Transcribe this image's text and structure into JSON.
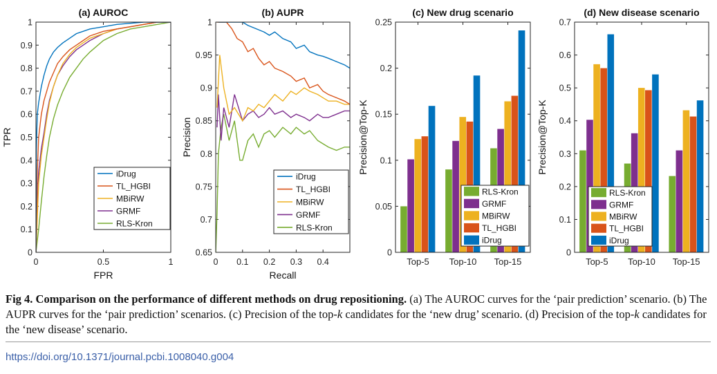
{
  "colors": {
    "iDrug": "#0072BD",
    "TL_HGBI": "#D95319",
    "MBiRW": "#EDB120",
    "GRMF": "#7E2F8E",
    "RLS-Kron": "#77AC30"
  },
  "chart_data": [
    {
      "type": "line",
      "title": "(a) AUROC",
      "xlabel": "FPR",
      "ylabel": "TPR",
      "xlim": [
        0,
        1
      ],
      "ylim": [
        0,
        1
      ],
      "xticks": [
        "0",
        "0.5",
        "1"
      ],
      "yticks": [
        "0",
        "0.1",
        "0.2",
        "0.3",
        "0.4",
        "0.5",
        "0.6",
        "0.7",
        "0.8",
        "0.9",
        "1"
      ],
      "legend_position": "bottom-right",
      "series": [
        {
          "name": "iDrug",
          "x": [
            0,
            0.003,
            0.01,
            0.02,
            0.04,
            0.06,
            0.08,
            0.1,
            0.13,
            0.16,
            0.2,
            0.25,
            0.3,
            0.35,
            0.4,
            0.5,
            0.6,
            0.7,
            0.8,
            0.9,
            1
          ],
          "y": [
            0,
            0.45,
            0.6,
            0.65,
            0.72,
            0.77,
            0.81,
            0.84,
            0.87,
            0.89,
            0.91,
            0.93,
            0.95,
            0.96,
            0.97,
            0.98,
            0.99,
            0.995,
            1,
            1,
            1
          ]
        },
        {
          "name": "TL_HGBI",
          "x": [
            0,
            0.01,
            0.02,
            0.04,
            0.06,
            0.08,
            0.1,
            0.13,
            0.16,
            0.2,
            0.25,
            0.3,
            0.35,
            0.4,
            0.5,
            0.6,
            0.7,
            0.8,
            0.9,
            1
          ],
          "y": [
            0,
            0.35,
            0.5,
            0.6,
            0.66,
            0.7,
            0.74,
            0.78,
            0.82,
            0.85,
            0.88,
            0.9,
            0.92,
            0.94,
            0.96,
            0.97,
            0.98,
            0.99,
            1,
            1
          ]
        },
        {
          "name": "MBiRW",
          "x": [
            0,
            0.01,
            0.02,
            0.04,
            0.06,
            0.08,
            0.1,
            0.13,
            0.16,
            0.2,
            0.25,
            0.3,
            0.35,
            0.4,
            0.5,
            0.6,
            0.7,
            0.8,
            0.9,
            1
          ],
          "y": [
            0,
            0.15,
            0.3,
            0.42,
            0.5,
            0.58,
            0.65,
            0.72,
            0.77,
            0.82,
            0.86,
            0.89,
            0.91,
            0.93,
            0.95,
            0.97,
            0.98,
            0.99,
            1,
            1
          ]
        },
        {
          "name": "GRMF",
          "x": [
            0,
            0.01,
            0.02,
            0.04,
            0.06,
            0.08,
            0.1,
            0.13,
            0.16,
            0.2,
            0.25,
            0.3,
            0.35,
            0.4,
            0.5,
            0.6,
            0.7,
            0.8,
            0.9,
            1
          ],
          "y": [
            0,
            0.2,
            0.35,
            0.45,
            0.52,
            0.6,
            0.66,
            0.72,
            0.77,
            0.81,
            0.85,
            0.88,
            0.9,
            0.92,
            0.95,
            0.97,
            0.98,
            0.99,
            1,
            1
          ]
        },
        {
          "name": "RLS-Kron",
          "x": [
            0,
            0.02,
            0.04,
            0.06,
            0.08,
            0.1,
            0.13,
            0.16,
            0.2,
            0.25,
            0.3,
            0.35,
            0.4,
            0.5,
            0.6,
            0.7,
            0.8,
            0.9,
            1
          ],
          "y": [
            0,
            0.1,
            0.22,
            0.33,
            0.42,
            0.5,
            0.58,
            0.64,
            0.7,
            0.76,
            0.8,
            0.84,
            0.87,
            0.92,
            0.95,
            0.97,
            0.98,
            0.99,
            1
          ]
        }
      ]
    },
    {
      "type": "line",
      "title": "(b) AUPR",
      "xlabel": "Recall",
      "ylabel": "Precision",
      "xlim": [
        0,
        0.5
      ],
      "ylim": [
        0.65,
        1
      ],
      "xticks": [
        "0",
        "0.1",
        "0.2",
        "0.3",
        "0.4"
      ],
      "yticks": [
        "0.65",
        "0.7",
        "0.75",
        "0.8",
        "0.85",
        "0.9",
        "0.95",
        "1"
      ],
      "legend_position": "bottom-right",
      "series": [
        {
          "name": "iDrug",
          "x": [
            0.01,
            0.02,
            0.05,
            0.08,
            0.1,
            0.12,
            0.15,
            0.18,
            0.2,
            0.22,
            0.25,
            0.28,
            0.3,
            0.33,
            0.35,
            0.38,
            0.4,
            0.42,
            0.45,
            0.48,
            0.5
          ],
          "y": [
            1,
            1,
            1,
            1,
            1,
            0.995,
            0.99,
            0.985,
            0.98,
            0.985,
            0.975,
            0.97,
            0.96,
            0.965,
            0.955,
            0.95,
            0.948,
            0.945,
            0.94,
            0.935,
            0.93
          ]
        },
        {
          "name": "TL_HGBI",
          "x": [
            0.005,
            0.02,
            0.04,
            0.06,
            0.08,
            0.1,
            0.12,
            0.14,
            0.16,
            0.18,
            0.2,
            0.22,
            0.25,
            0.28,
            0.3,
            0.33,
            0.35,
            0.38,
            0.4,
            0.42,
            0.45,
            0.48,
            0.5
          ],
          "y": [
            1,
            1,
            1,
            0.99,
            0.975,
            0.97,
            0.955,
            0.96,
            0.945,
            0.935,
            0.94,
            0.93,
            0.925,
            0.918,
            0.91,
            0.915,
            0.9,
            0.905,
            0.895,
            0.89,
            0.885,
            0.88,
            0.875
          ]
        },
        {
          "name": "MBiRW",
          "x": [
            0.005,
            0.015,
            0.03,
            0.05,
            0.07,
            0.1,
            0.12,
            0.14,
            0.16,
            0.18,
            0.2,
            0.22,
            0.25,
            0.28,
            0.3,
            0.33,
            0.35,
            0.38,
            0.4,
            0.42,
            0.45,
            0.48,
            0.5
          ],
          "y": [
            0.87,
            0.95,
            0.9,
            0.86,
            0.87,
            0.85,
            0.87,
            0.865,
            0.875,
            0.87,
            0.88,
            0.89,
            0.88,
            0.895,
            0.89,
            0.9,
            0.895,
            0.89,
            0.885,
            0.88,
            0.88,
            0.875,
            0.875
          ]
        },
        {
          "name": "GRMF",
          "x": [
            0.005,
            0.01,
            0.02,
            0.03,
            0.05,
            0.07,
            0.1,
            0.12,
            0.14,
            0.16,
            0.18,
            0.2,
            0.22,
            0.25,
            0.28,
            0.3,
            0.33,
            0.35,
            0.38,
            0.4,
            0.42,
            0.45,
            0.48,
            0.5
          ],
          "y": [
            0.84,
            0.89,
            0.82,
            0.87,
            0.84,
            0.89,
            0.85,
            0.86,
            0.865,
            0.855,
            0.86,
            0.87,
            0.86,
            0.865,
            0.855,
            0.86,
            0.855,
            0.85,
            0.86,
            0.855,
            0.855,
            0.86,
            0.865,
            0.865
          ]
        },
        {
          "name": "RLS-Kron",
          "x": [
            0,
            0.005,
            0.01,
            0.02,
            0.03,
            0.05,
            0.07,
            0.09,
            0.1,
            0.12,
            0.14,
            0.16,
            0.18,
            0.2,
            0.22,
            0.25,
            0.28,
            0.3,
            0.33,
            0.35,
            0.38,
            0.4,
            0.42,
            0.45,
            0.48,
            0.5
          ],
          "y": [
            0.65,
            0.71,
            0.8,
            0.84,
            0.86,
            0.82,
            0.85,
            0.79,
            0.79,
            0.82,
            0.83,
            0.81,
            0.83,
            0.835,
            0.825,
            0.84,
            0.83,
            0.84,
            0.83,
            0.835,
            0.82,
            0.815,
            0.81,
            0.805,
            0.81,
            0.81
          ]
        }
      ]
    },
    {
      "type": "bar",
      "title": "(c) New drug scenario",
      "xlabel": "",
      "ylabel": "Precision@Top-K",
      "categories": [
        "Top-5",
        "Top-10",
        "Top-15"
      ],
      "ylim": [
        0,
        0.25
      ],
      "yticks": [
        "0",
        "0.05",
        "0.1",
        "0.15",
        "0.2",
        "0.25"
      ],
      "legend_position": "bottom-right",
      "series": [
        {
          "name": "RLS-Kron",
          "values": [
            0.05,
            0.09,
            0.113
          ]
        },
        {
          "name": "GRMF",
          "values": [
            0.101,
            0.121,
            0.134
          ]
        },
        {
          "name": "MBiRW",
          "values": [
            0.123,
            0.147,
            0.164
          ]
        },
        {
          "name": "TL_HGBI",
          "values": [
            0.126,
            0.142,
            0.17
          ]
        },
        {
          "name": "iDrug",
          "values": [
            0.159,
            0.192,
            0.241
          ]
        }
      ]
    },
    {
      "type": "bar",
      "title": "(d) New disease scenario",
      "xlabel": "",
      "ylabel": "Precision@Top-K",
      "categories": [
        "Top-5",
        "Top-10",
        "Top-15"
      ],
      "ylim": [
        0,
        0.7
      ],
      "yticks": [
        "0",
        "0.1",
        "0.2",
        "0.3",
        "0.4",
        "0.5",
        "0.6",
        "0.7"
      ],
      "legend_position": "bottom-left",
      "series": [
        {
          "name": "RLS-Kron",
          "values": [
            0.31,
            0.27,
            0.232
          ]
        },
        {
          "name": "GRMF",
          "values": [
            0.403,
            0.362,
            0.31
          ]
        },
        {
          "name": "MBiRW",
          "values": [
            0.572,
            0.5,
            0.432
          ]
        },
        {
          "name": "TL_HGBI",
          "values": [
            0.56,
            0.493,
            0.413
          ]
        },
        {
          "name": "iDrug",
          "values": [
            0.663,
            0.541,
            0.462
          ]
        }
      ]
    }
  ],
  "caption": {
    "fig_label": "Fig 4. Comparison on the performance of different methods on drug repositioning.",
    "text_1": " (a) The AUROC curves for the ‘pair prediction’ scenario. (b) The AUPR curves for the ‘pair prediction’ scenarios. (c) Precision of the top-",
    "k1": "k",
    "text_2": " candidates for the ‘new drug’ scenario. (d) Precision of the top-",
    "k2": "k",
    "text_3": " candidates for the ‘new disease’ scenario."
  },
  "doi": "https://doi.org/10.1371/journal.pcbi.1008040.g004"
}
